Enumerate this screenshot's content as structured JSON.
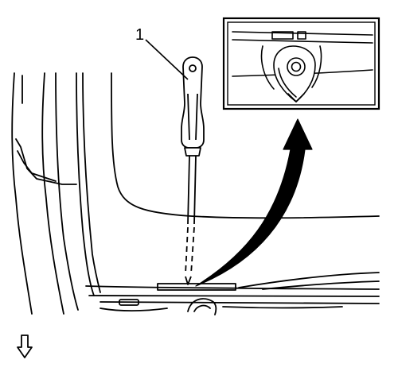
{
  "diagram": {
    "callouts": [
      {
        "number": "1",
        "target": "screwdriver"
      }
    ],
    "icons": {
      "direction_indicator": "down-arrow-icon",
      "zoom_arrow": "curved-arrow-icon",
      "detail_view": "clip-detail-inset"
    },
    "colors": {
      "line": "#000000",
      "background": "#ffffff"
    }
  }
}
